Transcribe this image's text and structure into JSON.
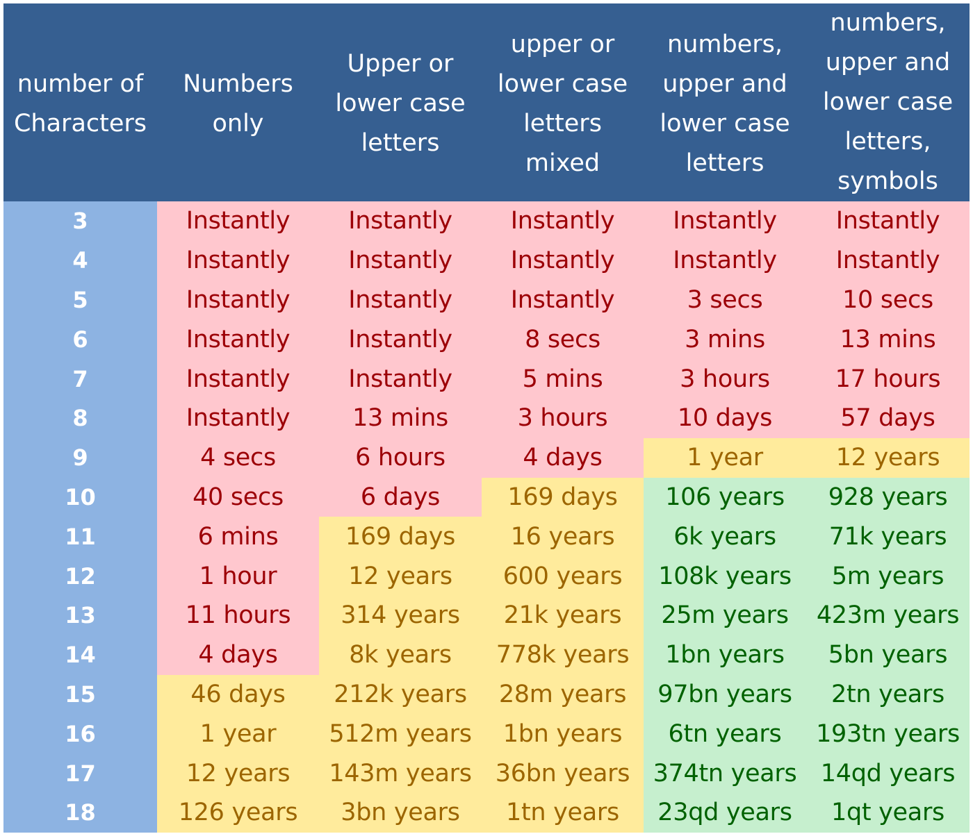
{
  "colors": {
    "header_bg": "#365f91",
    "row_label_bg": "#8db3e2",
    "red_bg": "#ffc7ce",
    "red_text": "#9c0006",
    "yellow_bg": "#ffeb9c",
    "yellow_text": "#9c6500",
    "green_bg": "#c6efce",
    "green_text": "#006100"
  },
  "chart_data": {
    "type": "table",
    "columns": [
      "number of\nCharacters",
      "Numbers\nonly",
      "Upper or\nlower case\nletters",
      "upper or\nlower case\nletters\nmixed",
      "numbers,\nupper and\nlower case\nletters",
      "numbers,\nupper and\nlower case\nletters,\nsymbols"
    ],
    "rows": [
      {
        "chars": "3",
        "values": [
          "Instantly",
          "Instantly",
          "Instantly",
          "Instantly",
          "Instantly"
        ],
        "levels": [
          "red",
          "red",
          "red",
          "red",
          "red"
        ]
      },
      {
        "chars": "4",
        "values": [
          "Instantly",
          "Instantly",
          "Instantly",
          "Instantly",
          "Instantly"
        ],
        "levels": [
          "red",
          "red",
          "red",
          "red",
          "red"
        ]
      },
      {
        "chars": "5",
        "values": [
          "Instantly",
          "Instantly",
          "Instantly",
          "3 secs",
          "10 secs"
        ],
        "levels": [
          "red",
          "red",
          "red",
          "red",
          "red"
        ]
      },
      {
        "chars": "6",
        "values": [
          "Instantly",
          "Instantly",
          "8 secs",
          "3 mins",
          "13 mins"
        ],
        "levels": [
          "red",
          "red",
          "red",
          "red",
          "red"
        ]
      },
      {
        "chars": "7",
        "values": [
          "Instantly",
          "Instantly",
          "5 mins",
          "3 hours",
          "17 hours"
        ],
        "levels": [
          "red",
          "red",
          "red",
          "red",
          "red"
        ]
      },
      {
        "chars": "8",
        "values": [
          "Instantly",
          "13 mins",
          "3 hours",
          "10 days",
          "57 days"
        ],
        "levels": [
          "red",
          "red",
          "red",
          "red",
          "red"
        ]
      },
      {
        "chars": "9",
        "values": [
          "4 secs",
          "6 hours",
          "4 days",
          "1 year",
          "12 years"
        ],
        "levels": [
          "red",
          "red",
          "red",
          "yellow",
          "yellow"
        ]
      },
      {
        "chars": "10",
        "values": [
          "40 secs",
          "6 days",
          "169 days",
          "106 years",
          "928 years"
        ],
        "levels": [
          "red",
          "red",
          "yellow",
          "green",
          "green"
        ]
      },
      {
        "chars": "11",
        "values": [
          "6 mins",
          "169 days",
          "16 years",
          "6k years",
          "71k years"
        ],
        "levels": [
          "red",
          "yellow",
          "yellow",
          "green",
          "green"
        ]
      },
      {
        "chars": "12",
        "values": [
          "1 hour",
          "12 years",
          "600 years",
          "108k years",
          "5m years"
        ],
        "levels": [
          "red",
          "yellow",
          "yellow",
          "green",
          "green"
        ]
      },
      {
        "chars": "13",
        "values": [
          "11 hours",
          "314 years",
          "21k years",
          "25m years",
          "423m years"
        ],
        "levels": [
          "red",
          "yellow",
          "yellow",
          "green",
          "green"
        ]
      },
      {
        "chars": "14",
        "values": [
          "4 days",
          "8k years",
          "778k years",
          "1bn years",
          "5bn years"
        ],
        "levels": [
          "red",
          "yellow",
          "yellow",
          "green",
          "green"
        ]
      },
      {
        "chars": "15",
        "values": [
          "46 days",
          "212k years",
          "28m years",
          "97bn years",
          "2tn years"
        ],
        "levels": [
          "yellow",
          "yellow",
          "yellow",
          "green",
          "green"
        ]
      },
      {
        "chars": "16",
        "values": [
          "1 year",
          "512m years",
          "1bn years",
          "6tn years",
          "193tn years"
        ],
        "levels": [
          "yellow",
          "yellow",
          "yellow",
          "green",
          "green"
        ]
      },
      {
        "chars": "17",
        "values": [
          "12 years",
          "143m years",
          "36bn years",
          "374tn years",
          "14qd years"
        ],
        "levels": [
          "yellow",
          "yellow",
          "yellow",
          "green",
          "green"
        ]
      },
      {
        "chars": "18",
        "values": [
          "126 years",
          "3bn years",
          "1tn years",
          "23qd years",
          "1qt years"
        ],
        "levels": [
          "yellow",
          "yellow",
          "yellow",
          "green",
          "green"
        ]
      }
    ]
  }
}
